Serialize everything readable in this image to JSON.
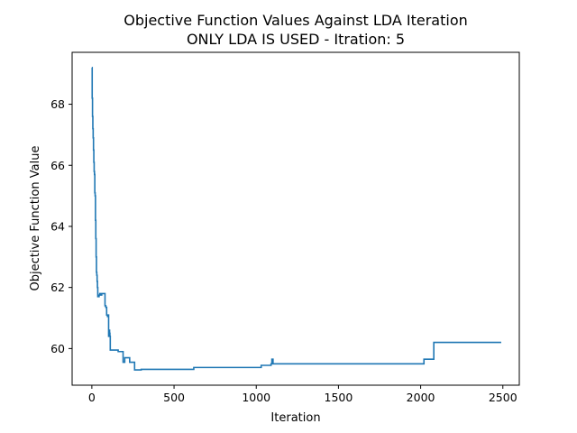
{
  "chart_data": {
    "type": "line",
    "title": "Objective Function Values Against LDA Iteration",
    "subtitle": "ONLY LDA IS USED - Itration: 5",
    "xlabel": "Iteration",
    "ylabel": "Objective Function Value",
    "xlim": [
      -120,
      2600
    ],
    "ylim": [
      58.8,
      69.7
    ],
    "xticks": [
      0,
      500,
      1000,
      1500,
      2000,
      2500
    ],
    "xtick_labels": [
      "0",
      "500",
      "1000",
      "1500",
      "2000",
      "2500"
    ],
    "yticks": [
      60,
      62,
      64,
      66,
      68
    ],
    "ytick_labels": [
      "60",
      "62",
      "64",
      "66",
      "68"
    ],
    "grid": false,
    "line_color": "#1f77b4",
    "step": true,
    "series": [
      {
        "x": [
          0,
          2,
          4,
          6,
          8,
          10,
          12,
          14,
          16,
          18,
          20,
          22,
          24,
          26,
          28,
          30,
          32,
          34,
          36,
          38,
          40,
          44,
          48,
          55,
          60,
          80,
          85,
          90,
          95,
          100,
          102,
          105,
          108,
          110,
          112,
          115,
          160,
          190,
          200,
          210,
          230,
          260,
          300,
          620,
          1030,
          1090,
          1095,
          1098,
          1100,
          1102,
          1110,
          2020,
          2080,
          2490
        ],
        "y": [
          69.2,
          68.2,
          67.6,
          67.2,
          66.9,
          66.5,
          66.1,
          65.8,
          65.7,
          65.1,
          65.0,
          64.2,
          63.6,
          63.0,
          62.5,
          62.4,
          62.2,
          62.0,
          61.7,
          61.75,
          61.7,
          61.75,
          61.8,
          61.75,
          61.8,
          61.4,
          61.35,
          61.1,
          61.05,
          61.1,
          60.4,
          60.6,
          60.5,
          60.4,
          59.95,
          59.95,
          59.9,
          59.55,
          59.7,
          59.7,
          59.55,
          59.3,
          59.32,
          59.38,
          59.45,
          59.5,
          59.65,
          59.5,
          59.65,
          59.5,
          59.5,
          59.65,
          60.2,
          60.2
        ]
      }
    ]
  }
}
